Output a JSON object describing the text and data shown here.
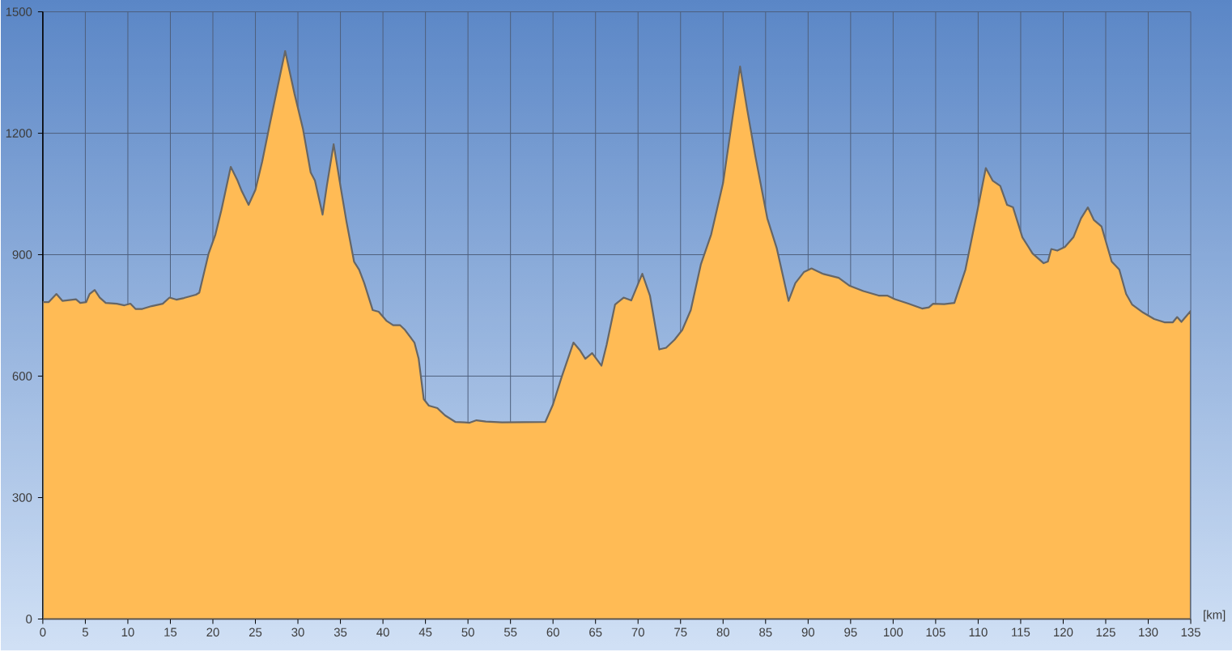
{
  "chart_data": {
    "type": "area",
    "xlabel": "[km]",
    "x": [
      0,
      0.7,
      1.6,
      2.3,
      3.9,
      4.4,
      5.1,
      5.5,
      6.1,
      6.7,
      7.4,
      8.7,
      9.6,
      10.3,
      10.9,
      11.7,
      12.8,
      14.1,
      14.9,
      15.7,
      16.6,
      18.0,
      18.4,
      19.5,
      20.3,
      21.0,
      22.1,
      22.9,
      23.4,
      24.2,
      25.0,
      25.8,
      26.7,
      28.5,
      29.6,
      30.6,
      31.5,
      32.0,
      32.9,
      33.4,
      34.2,
      35.0,
      35.7,
      36.6,
      37.2,
      37.8,
      38.8,
      39.5,
      40.4,
      41.2,
      42.0,
      42.6,
      43.7,
      44.2,
      44.8,
      45.4,
      46.4,
      47.3,
      48.5,
      49.6,
      50.2,
      51.0,
      52.1,
      54.0,
      59.1,
      60.0,
      61.0,
      62.4,
      63.2,
      63.8,
      64.6,
      65.7,
      66.3,
      67.3,
      68.3,
      69.2,
      70.5,
      71.4,
      72.5,
      73.3,
      74.3,
      75.2,
      76.2,
      77.4,
      78.6,
      80.0,
      81.1,
      82.0,
      82.8,
      83.8,
      85.2,
      86.3,
      87.7,
      88.5,
      89.5,
      90.4,
      91.7,
      93.6,
      94.9,
      96.5,
      98.3,
      99.3,
      100.2,
      101.8,
      103.4,
      104.2,
      104.7,
      106.0,
      107.2,
      108.5,
      109.8,
      110.9,
      111.7,
      112.6,
      113.4,
      114.1,
      115.2,
      116.4,
      117.7,
      118.2,
      118.6,
      119.3,
      120.2,
      121.2,
      122.1,
      122.9,
      123.6,
      124.5,
      125.7,
      126.6,
      127.4,
      128.1,
      129.4,
      130.7,
      131.9,
      132.9,
      133.4,
      133.9,
      135
    ],
    "values": [
      783,
      783,
      803,
      786,
      790,
      781,
      783,
      803,
      813,
      794,
      781,
      779,
      775,
      779,
      766,
      766,
      773,
      779,
      794,
      789,
      793,
      801,
      806,
      903,
      950,
      1010,
      1117,
      1083,
      1057,
      1023,
      1060,
      1130,
      1223,
      1403,
      1297,
      1210,
      1103,
      1083,
      999,
      1070,
      1173,
      1070,
      983,
      883,
      863,
      830,
      763,
      759,
      737,
      726,
      726,
      714,
      683,
      643,
      543,
      527,
      521,
      503,
      487,
      486,
      485,
      491,
      488,
      486,
      487,
      530,
      597,
      683,
      663,
      643,
      657,
      626,
      677,
      777,
      794,
      787,
      853,
      799,
      666,
      670,
      690,
      714,
      763,
      877,
      950,
      1077,
      1237,
      1365,
      1263,
      1143,
      990,
      917,
      786,
      830,
      857,
      866,
      853,
      843,
      823,
      810,
      799,
      799,
      790,
      779,
      767,
      770,
      779,
      778,
      781,
      863,
      997,
      1114,
      1083,
      1070,
      1023,
      1017,
      943,
      903,
      879,
      883,
      914,
      910,
      919,
      943,
      990,
      1017,
      986,
      970,
      883,
      863,
      803,
      777,
      757,
      741,
      733,
      733,
      746,
      734,
      761
    ],
    "color": "#ffbb55",
    "xlim": [
      0,
      135
    ],
    "ylim": [
      0,
      1500
    ],
    "xticks": [
      0,
      5,
      10,
      15,
      20,
      25,
      30,
      35,
      40,
      45,
      50,
      55,
      60,
      65,
      70,
      75,
      80,
      85,
      90,
      95,
      100,
      105,
      110,
      115,
      120,
      125,
      130,
      135
    ],
    "yticks": [
      0,
      300,
      600,
      900,
      1200,
      1500
    ],
    "grid": true
  }
}
